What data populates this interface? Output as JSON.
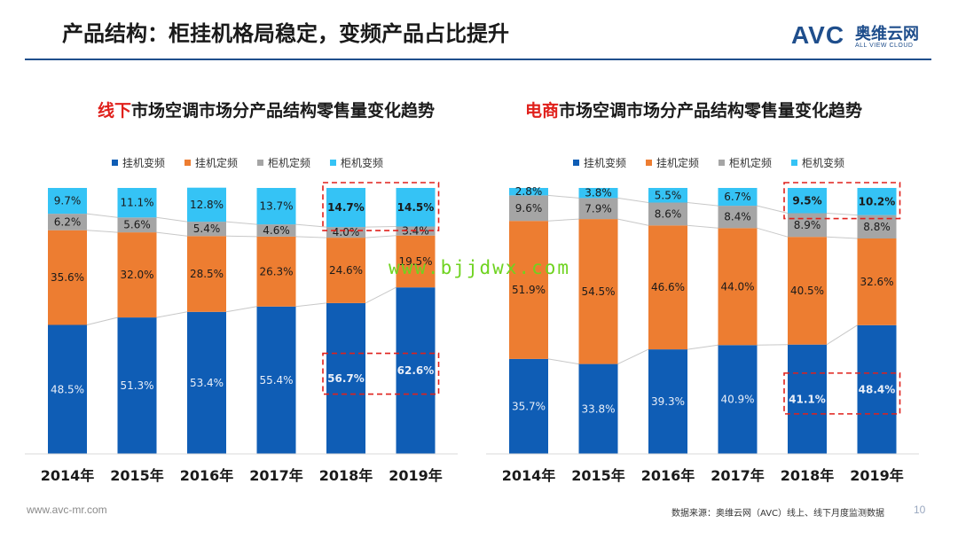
{
  "slide": {
    "title": "产品结构：柜挂机格局稳定，变频产品占比提升",
    "logo_mark": "AVC",
    "logo_cn": "奥维云网",
    "logo_en": "ALL VIEW CLOUD",
    "website": "www.avc-mr.com",
    "source": "数据来源：奥维云网（AVC）线上、线下月度监测数据",
    "page_number": "10",
    "overlay_text": "www.bjjdwx.com"
  },
  "colors": {
    "hang_inverter": "#0f5db5",
    "hang_fixed": "#ed7d31",
    "cabinet_fixed": "#a5a5a5",
    "cabinet_inverter": "#35c3f5",
    "highlight_red": "#e0201b",
    "connector": "#c8c8c8"
  },
  "chart_data": [
    {
      "type": "bar",
      "stacked": true,
      "title_highlight": "线下",
      "title_rest": "市场空调市场分产品结构零售量变化趋势",
      "categories": [
        "2014年",
        "2015年",
        "2016年",
        "2017年",
        "2018年",
        "2019年"
      ],
      "ylim": [
        0,
        100
      ],
      "legend_position": "top",
      "series": [
        {
          "name": "挂机变频",
          "values": [
            48.5,
            51.3,
            53.4,
            55.4,
            56.7,
            62.6
          ],
          "labels": [
            "48.5%",
            "51.3%",
            "53.4%",
            "55.4%",
            "56.7%",
            "62.6%"
          ]
        },
        {
          "name": "挂机定频",
          "values": [
            35.6,
            32.0,
            28.5,
            26.3,
            24.6,
            19.5
          ],
          "labels": [
            "35.6%",
            "32.0%",
            "28.5%",
            "26.3%",
            "24.6%",
            "19.5%"
          ]
        },
        {
          "name": "柜机定频",
          "values": [
            6.2,
            5.6,
            5.4,
            4.6,
            4.0,
            3.4
          ],
          "labels": [
            "6.2%",
            "5.6%",
            "5.4%",
            "4.6%",
            "4.0%",
            "3.4%"
          ]
        },
        {
          "name": "柜机变频",
          "values": [
            9.7,
            11.1,
            12.8,
            13.7,
            14.7,
            14.5
          ],
          "labels": [
            "9.7%",
            "11.1%",
            "12.8%",
            "13.7%",
            "14.7%",
            "14.5%"
          ]
        }
      ],
      "highlight_boxes": [
        {
          "series": "柜机变频",
          "from_category": "2018年",
          "to_category": "2019年"
        },
        {
          "series": "挂机变频",
          "from_category": "2018年",
          "to_category": "2019年"
        }
      ]
    },
    {
      "type": "bar",
      "stacked": true,
      "title_highlight": "电商",
      "title_rest": "市场空调市场分产品结构零售量变化趋势",
      "categories": [
        "2014年",
        "2015年",
        "2016年",
        "2017年",
        "2018年",
        "2019年"
      ],
      "ylim": [
        0,
        100
      ],
      "legend_position": "top",
      "series": [
        {
          "name": "挂机变频",
          "values": [
            35.7,
            33.8,
            39.3,
            40.9,
            41.1,
            48.4
          ],
          "labels": [
            "35.7%",
            "33.8%",
            "39.3%",
            "40.9%",
            "41.1%",
            "48.4%"
          ]
        },
        {
          "name": "挂机定频",
          "values": [
            51.9,
            54.5,
            46.6,
            44.0,
            40.5,
            32.6
          ],
          "labels": [
            "51.9%",
            "54.5%",
            "46.6%",
            "44.0%",
            "40.5%",
            "32.6%"
          ]
        },
        {
          "name": "柜机定频",
          "values": [
            9.6,
            7.9,
            8.6,
            8.4,
            8.9,
            8.8
          ],
          "labels": [
            "9.6%",
            "7.9%",
            "8.6%",
            "8.4%",
            "8.9%",
            "8.8%"
          ]
        },
        {
          "name": "柜机变频",
          "values": [
            2.8,
            3.8,
            5.5,
            6.7,
            9.5,
            10.2
          ],
          "labels": [
            "2.8%",
            "3.8%",
            "5.5%",
            "6.7%",
            "9.5%",
            "10.2%"
          ]
        }
      ],
      "highlight_boxes": [
        {
          "series": "柜机变频",
          "from_category": "2018年",
          "to_category": "2019年"
        },
        {
          "series": "挂机变频",
          "from_category": "2018年",
          "to_category": "2019年"
        }
      ]
    }
  ]
}
